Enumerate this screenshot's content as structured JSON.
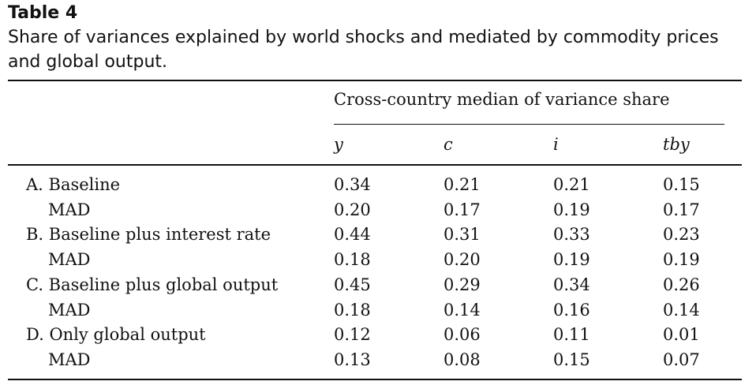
{
  "table": {
    "label": "Table 4",
    "caption": "Share of variances explained by world shocks and mediated by commodity prices and global output.",
    "spanner": "Cross-country median of variance share",
    "columns": [
      "y",
      "c",
      "i",
      "tby"
    ],
    "rows": [
      {
        "label": "A. Baseline",
        "indent": false,
        "values": [
          "0.34",
          "0.21",
          "0.21",
          "0.15"
        ]
      },
      {
        "label": "MAD",
        "indent": true,
        "values": [
          "0.20",
          "0.17",
          "0.19",
          "0.17"
        ]
      },
      {
        "label": "B. Baseline plus interest rate",
        "indent": false,
        "values": [
          "0.44",
          "0.31",
          "0.33",
          "0.23"
        ]
      },
      {
        "label": "MAD",
        "indent": true,
        "values": [
          "0.18",
          "0.20",
          "0.19",
          "0.19"
        ]
      },
      {
        "label": "C. Baseline plus global output",
        "indent": false,
        "values": [
          "0.45",
          "0.29",
          "0.34",
          "0.26"
        ]
      },
      {
        "label": "MAD",
        "indent": true,
        "values": [
          "0.18",
          "0.14",
          "0.16",
          "0.14"
        ]
      },
      {
        "label": "D. Only global output",
        "indent": false,
        "values": [
          "0.12",
          "0.06",
          "0.11",
          "0.01"
        ]
      },
      {
        "label": "MAD",
        "indent": true,
        "values": [
          "0.13",
          "0.08",
          "0.15",
          "0.07"
        ]
      }
    ]
  }
}
